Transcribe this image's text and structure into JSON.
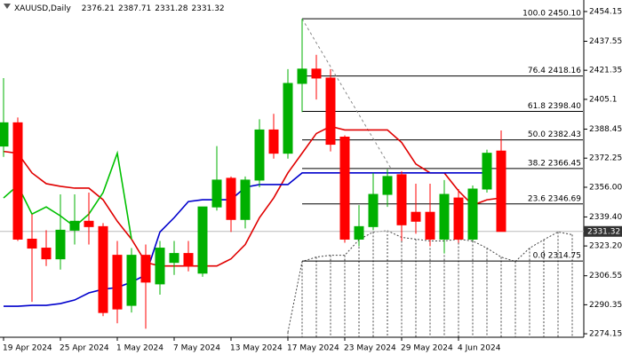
{
  "header": {
    "symbol": "XAUUSD,Daily",
    "ohlc": [
      2376.21,
      2387.71,
      2331.28,
      2331.32
    ]
  },
  "chart_data": {
    "type": "candlestick",
    "categories": [
      "19 Apr 2024",
      null,
      null,
      null,
      "25 Apr 2024",
      null,
      null,
      null,
      "1 May 2024",
      null,
      null,
      null,
      "7 May 2024",
      null,
      null,
      null,
      "13 May 2024",
      null,
      null,
      null,
      "17 May 2024",
      null,
      null,
      null,
      "23 May 2024",
      null,
      null,
      null,
      "29 May 2024",
      null,
      null,
      null,
      "4 Jun 2024",
      null,
      null,
      null,
      null,
      null,
      null,
      null,
      null
    ],
    "open": [
      2379,
      2392,
      2327,
      2322,
      2316,
      2332,
      2337,
      2334,
      2318,
      2290,
      2318,
      2302,
      2314,
      2319,
      2308,
      2345,
      2361,
      2338,
      2360,
      2388,
      2375,
      2414,
      2422,
      2417,
      2384,
      2327,
      2334,
      2352,
      2363,
      2342,
      2342,
      2327,
      2350,
      2327,
      2355,
      2376.21,
      null,
      null,
      null,
      null,
      null
    ],
    "high": [
      2417,
      2395,
      2341,
      2332,
      2352,
      2352,
      2353,
      2336,
      2326,
      2322,
      2324,
      2326,
      2326,
      2326,
      2345,
      2379,
      2362,
      2362,
      2394,
      2397,
      2422,
      2450.1,
      2430,
      2422,
      2385,
      2346,
      2364,
      2366,
      2365,
      2358,
      2358,
      2360,
      2355,
      2357,
      2377,
      2387.71,
      null,
      null,
      null,
      null,
      null
    ],
    "low": [
      2373,
      2326,
      2292,
      2312,
      2310,
      2324,
      2324,
      2284,
      2280,
      2286,
      2277,
      2296,
      2307,
      2309,
      2306,
      2343,
      2331,
      2333,
      2356,
      2372,
      2372,
      2398,
      2405,
      2376,
      2325,
      2323,
      2332,
      2345,
      2326,
      2330,
      2323,
      2319,
      2325,
      2326,
      2353,
      2331.28,
      null,
      null,
      null,
      null,
      null
    ],
    "close": [
      2392,
      2327,
      2322,
      2316,
      2332,
      2337,
      2334,
      2286,
      2288,
      2318,
      2303,
      2322,
      2319,
      2312,
      2345,
      2360,
      2338,
      2360,
      2388,
      2375,
      2414,
      2422,
      2417,
      2380,
      2327,
      2334,
      2352,
      2362,
      2335,
      2337,
      2327,
      2352,
      2327,
      2355,
      2375,
      2331.32,
      null,
      null,
      null,
      null,
      null
    ],
    "up_color": "#00b000",
    "down_color": "#ff0000",
    "lines": [
      {
        "color": "#e00000",
        "values": [
          2376,
          2375,
          2364,
          2358,
          2356.5,
          2355.5,
          2355.5,
          2349,
          2337,
          2327,
          2314,
          2312,
          2312,
          2312,
          2312,
          2312,
          2316,
          2324,
          2339,
          2350,
          2364,
          2375,
          2386,
          2390,
          2388,
          2388,
          2388,
          2388,
          2381,
          2369,
          2364,
          2364,
          2354,
          2346,
          2349,
          2350,
          null,
          null,
          null,
          null,
          null
        ]
      },
      {
        "color": "#0000cc",
        "values": [
          2289.5,
          2289.5,
          2290,
          2290,
          2291,
          2293,
          2297,
          2299,
          2300,
          2303,
          2307,
          2331,
          2339,
          2348,
          2349,
          2349,
          2349,
          2356,
          2357.5,
          2357.5,
          2357.5,
          2364,
          2364,
          2364,
          2364,
          2364,
          2364,
          2364,
          2364,
          2364,
          2364,
          2364,
          2364,
          2364,
          2364,
          null,
          null,
          null,
          null,
          null,
          null
        ]
      },
      {
        "color": "#00c000",
        "values": [
          2350,
          2357,
          2341,
          2345,
          2340,
          2334,
          2341,
          2353,
          2375,
          2327,
          null,
          null,
          null,
          null,
          null,
          null,
          null,
          null,
          null,
          null,
          null,
          null,
          null,
          null,
          null,
          null,
          null,
          null,
          null,
          null,
          null,
          null,
          null,
          null,
          null,
          null,
          null,
          null,
          null,
          null,
          null
        ]
      }
    ],
    "cloud_top": {
      "color": "#444444",
      "values": [
        null,
        null,
        null,
        null,
        null,
        null,
        null,
        null,
        null,
        null,
        null,
        null,
        null,
        null,
        null,
        null,
        null,
        null,
        null,
        null,
        2275,
        2314.5,
        2317,
        2318,
        2318,
        2326.7,
        2331,
        2331.7,
        2328,
        2327,
        2326,
        2326,
        2327,
        2326,
        2322,
        2317,
        2314.5,
        2322,
        2326.7,
        2331,
        2329.5
      ]
    },
    "fib_levels": [
      {
        "label": "100.0 2450.10",
        "value": 2450.1
      },
      {
        "label": "76.4 2418.16",
        "value": 2418.16
      },
      {
        "label": "61.8 2398.40",
        "value": 2398.4
      },
      {
        "label": "50.0 2382.43",
        "value": 2382.43
      },
      {
        "label": "38.2 2366.45",
        "value": 2366.45
      },
      {
        "label": "23.6 2346.69",
        "value": 2346.69
      },
      {
        "label": "0.0 2314.75",
        "value": 2314.75
      }
    ],
    "current_price": 2331.32,
    "ylim": [
      2272.2,
      2460.6
    ],
    "yticks": [
      2274.15,
      2290.35,
      2306.55,
      {
        "value": 2323.2,
        "label": "2323.20"
      },
      {
        "value": 2339.4,
        "label": "2339.40"
      },
      {
        "value": 2356,
        "label": "2356.00"
      },
      2372.25,
      2388.45,
      2405.1,
      2421.35,
      2437.55,
      2454.15
    ]
  }
}
